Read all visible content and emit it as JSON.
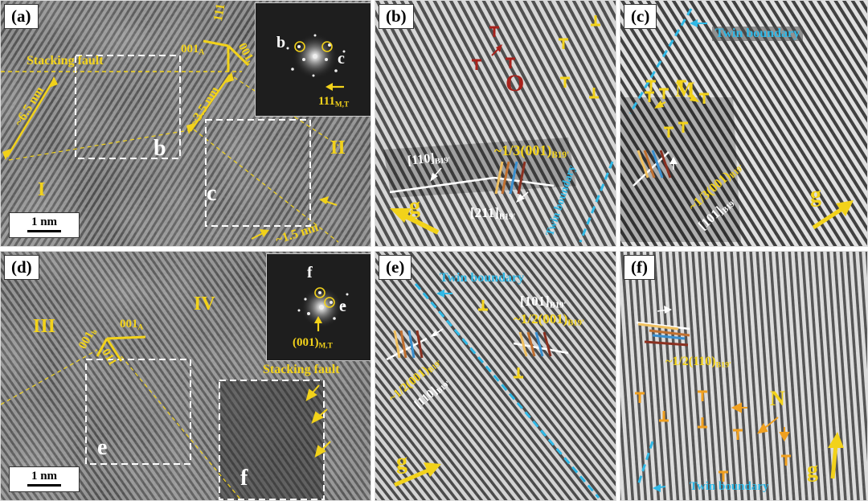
{
  "panels": {
    "a": {
      "label": "(a)",
      "stacking_fault": "Stacking fault",
      "d1": "~6.5 nm",
      "d2": "~3.5 nm",
      "d3": "~1.5 nm",
      "dir_top": "111",
      "dir_a": "001",
      "dir_a_sub": "A",
      "dir_b": "001",
      "dir_b_sub": "b",
      "box_b": "b",
      "box_c": "c",
      "region_1": "I",
      "region_2": "II",
      "fft_b": "b",
      "fft_c": "c",
      "fft_label": "111",
      "fft_label_sub": "M,T",
      "scale": "1 nm"
    },
    "b": {
      "label": "(b)",
      "region": "O",
      "dir_110": "[110]",
      "dir_110_sub": "B19'",
      "burgers": "~1/3(001)",
      "burgers_sub": "B19'",
      "dir_211": "[211]",
      "dir_211_sub": "B19'",
      "twin": "Twin boundary",
      "g": "g"
    },
    "c": {
      "label": "(c)",
      "twin": "Twin boundary",
      "region": "M",
      "burgers": "~1/3(001)",
      "burgers_sub": "B19'",
      "dir": "[101]",
      "dir_sub": "B19'",
      "g": "g"
    },
    "d": {
      "label": "(d)",
      "region_3": "III",
      "region_4": "IV",
      "dir_a": "001",
      "dir_a_sub": "A",
      "dir_b": "001",
      "dir_b_sub": "b",
      "dir_c": "011",
      "box_e": "e",
      "box_f": "f",
      "stacking_fault": "Stacking fault",
      "fft_f": "f",
      "fft_e": "e",
      "fft_label": "(001)",
      "fft_label_sub": "M,T",
      "scale": "1 nm"
    },
    "e": {
      "label": "(e)",
      "twin": "Twin boundary",
      "dir_101": "[101]",
      "dir_101_sub": "B19'",
      "burgers_r": "~1/2(001)",
      "burgers_r_sub": "B19'",
      "burgers_l": "~1/2(001)",
      "burgers_l_sub": "B19'",
      "dir_110": "[110]",
      "dir_110_sub": "B19'",
      "g": "g"
    },
    "f": {
      "label": "(f)",
      "burgers": "~1/2(110)",
      "burgers_sub": "B19'",
      "region": "N",
      "twin": "Twin boundary",
      "g": "g"
    }
  },
  "colors": {
    "annotation_yellow": "#f2d21a",
    "twin_cyan": "#2fb8e6",
    "dislocation_red": "#a8221c",
    "dislocation_orange": "#f0a020"
  }
}
